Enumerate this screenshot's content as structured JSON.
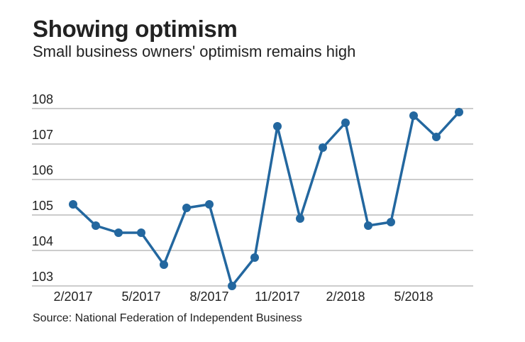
{
  "title": "Showing optimism",
  "subtitle": "Small business owners' optimism remains high",
  "source": "Source: National Federation of Independent Business",
  "chart_data": {
    "type": "line",
    "title": "Showing optimism",
    "subtitle": "Small business owners' optimism remains high",
    "xlabel": "",
    "ylabel": "",
    "x": [
      "2/2017",
      "3/2017",
      "4/2017",
      "5/2017",
      "6/2017",
      "7/2017",
      "8/2017",
      "9/2017",
      "10/2017",
      "11/2017",
      "12/2017",
      "1/2018",
      "2/2018",
      "3/2018",
      "4/2018",
      "5/2018",
      "6/2018",
      "7/2018"
    ],
    "values": [
      105.3,
      104.7,
      104.5,
      104.5,
      103.6,
      105.2,
      105.3,
      103.0,
      103.8,
      107.5,
      104.9,
      106.9,
      107.6,
      104.7,
      104.8,
      107.8,
      107.2,
      107.9
    ],
    "x_tick_labels": [
      "2/2017",
      "5/2017",
      "8/2017",
      "11/2017",
      "2/2018",
      "5/2018"
    ],
    "y_ticks": [
      103,
      104,
      105,
      106,
      107,
      108
    ],
    "ylim": [
      103,
      108
    ],
    "grid": "horizontal",
    "legend": "none",
    "line_color": "#23679f",
    "source": "Source: National Federation of Independent Business"
  }
}
